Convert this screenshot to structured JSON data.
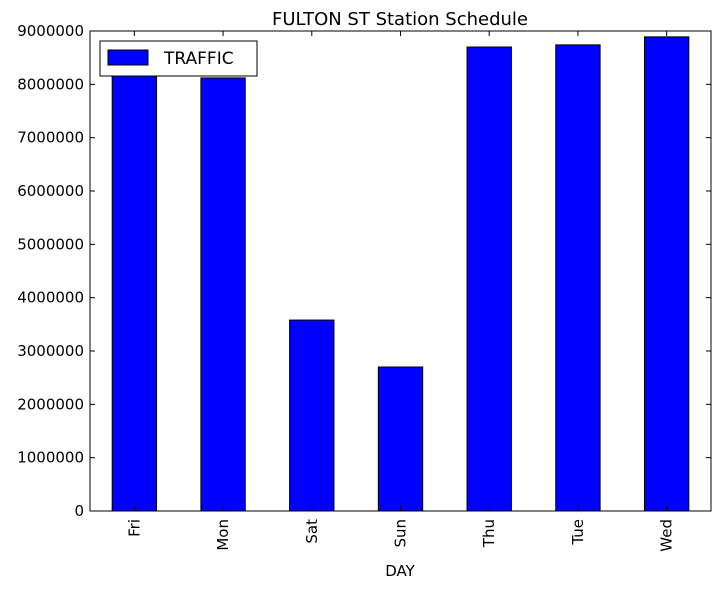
{
  "chart_data": {
    "type": "bar",
    "title": "FULTON ST Station Schedule",
    "xlabel": "DAY",
    "ylabel": "",
    "categories": [
      "Fri",
      "Mon",
      "Sat",
      "Sun",
      "Thu",
      "Tue",
      "Wed"
    ],
    "series": [
      {
        "name": "TRAFFIC",
        "values": [
          8200000,
          8120000,
          3580000,
          2700000,
          8700000,
          8740000,
          8890000
        ]
      }
    ],
    "ylim": [
      0,
      9000000
    ],
    "yticks": [
      "0",
      "1000000",
      "2000000",
      "3000000",
      "4000000",
      "5000000",
      "6000000",
      "7000000",
      "8000000",
      "9000000"
    ],
    "grid": false,
    "legend_position": "top-left",
    "bar_color": "#0000ff"
  }
}
